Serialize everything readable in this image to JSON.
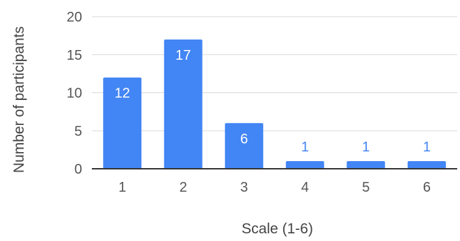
{
  "chart_data": {
    "type": "bar",
    "title": "",
    "xlabel": "Scale (1-6)",
    "ylabel": "Number of participants",
    "categories": [
      "1",
      "2",
      "3",
      "4",
      "5",
      "6"
    ],
    "values": [
      12,
      17,
      6,
      1,
      1,
      1
    ],
    "ylim": [
      0,
      20
    ],
    "yticks": [
      0,
      5,
      10,
      15,
      20
    ],
    "grid": true,
    "legend": "none",
    "colors": {
      "bar": "#4285f4",
      "label_inside": "#ffffff",
      "label_outside": "#4285f4"
    }
  }
}
